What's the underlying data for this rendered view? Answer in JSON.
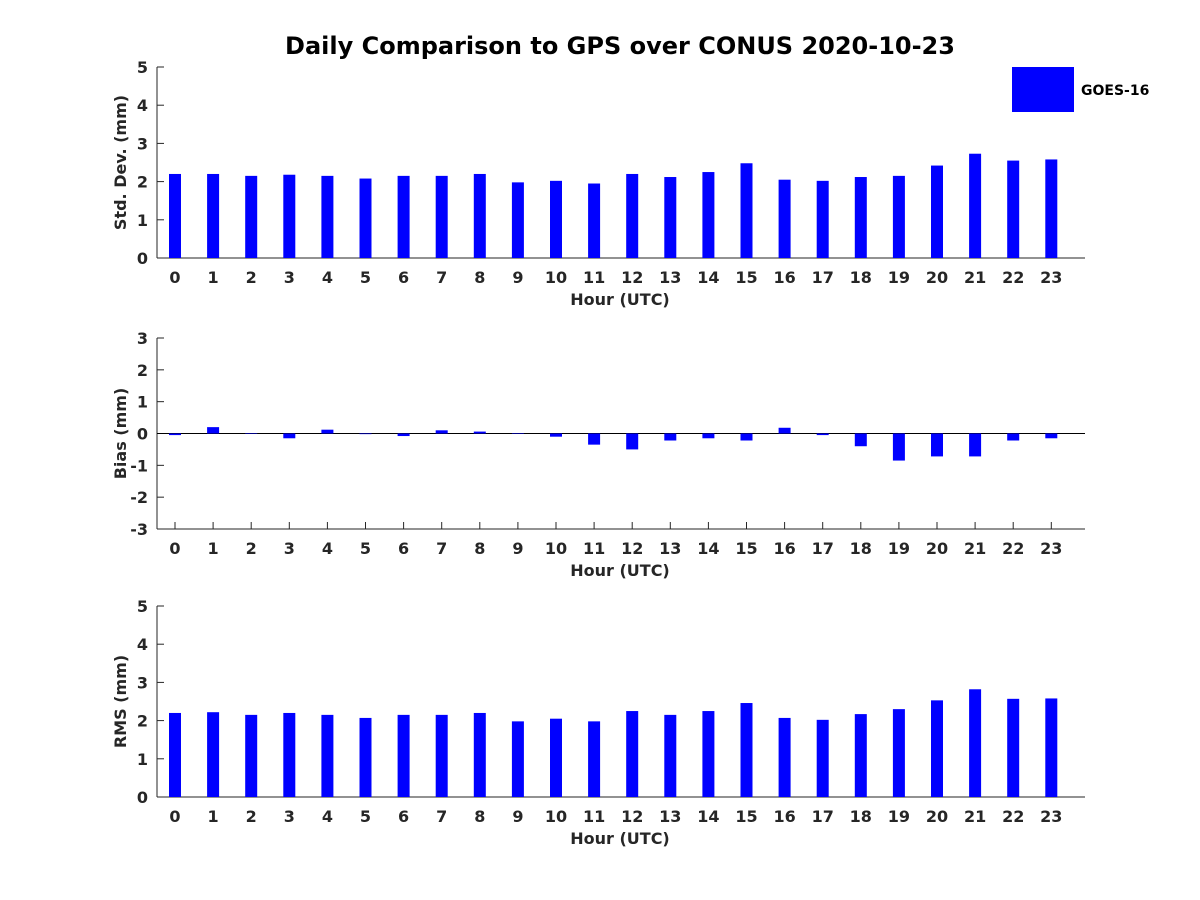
{
  "title": "Daily Comparison to GPS over CONUS 2020-10-23",
  "legend": {
    "label": "GOES-16",
    "color": "#0000ff"
  },
  "chart_data": [
    {
      "type": "bar",
      "name": "std-dev",
      "ylabel": "Std. Dev. (mm)",
      "xlabel": "Hour (UTC)",
      "ylim": [
        0,
        5
      ],
      "yticks": [
        0,
        1,
        2,
        3,
        4,
        5
      ],
      "categories": [
        0,
        1,
        2,
        3,
        4,
        5,
        6,
        7,
        8,
        9,
        10,
        11,
        12,
        13,
        14,
        15,
        16,
        17,
        18,
        19,
        20,
        21,
        22,
        23
      ],
      "series": [
        {
          "name": "GOES-16",
          "color": "#0000ff",
          "values": [
            2.2,
            2.2,
            2.15,
            2.18,
            2.15,
            2.08,
            2.15,
            2.15,
            2.2,
            1.98,
            2.02,
            1.95,
            2.2,
            2.12,
            2.25,
            2.48,
            2.05,
            2.02,
            2.12,
            2.15,
            2.42,
            2.73,
            2.55,
            2.58
          ]
        }
      ]
    },
    {
      "type": "bar",
      "name": "bias",
      "ylabel": "Bias (mm)",
      "xlabel": "Hour (UTC)",
      "ylim": [
        -3,
        3
      ],
      "yticks": [
        -3,
        -2,
        -1,
        0,
        1,
        2,
        3
      ],
      "categories": [
        0,
        1,
        2,
        3,
        4,
        5,
        6,
        7,
        8,
        9,
        10,
        11,
        12,
        13,
        14,
        15,
        16,
        17,
        18,
        19,
        20,
        21,
        22,
        23
      ],
      "series": [
        {
          "name": "GOES-16",
          "color": "#0000ff",
          "values": [
            -0.05,
            0.2,
            0.0,
            -0.15,
            0.12,
            -0.02,
            -0.08,
            0.1,
            0.06,
            -0.01,
            -0.1,
            -0.35,
            -0.5,
            -0.22,
            -0.15,
            -0.22,
            0.18,
            -0.05,
            -0.4,
            -0.85,
            -0.72,
            -0.72,
            -0.22,
            -0.15
          ]
        }
      ]
    },
    {
      "type": "bar",
      "name": "rms",
      "ylabel": "RMS (mm)",
      "xlabel": "Hour (UTC)",
      "ylim": [
        0,
        5
      ],
      "yticks": [
        0,
        1,
        2,
        3,
        4,
        5
      ],
      "categories": [
        0,
        1,
        2,
        3,
        4,
        5,
        6,
        7,
        8,
        9,
        10,
        11,
        12,
        13,
        14,
        15,
        16,
        17,
        18,
        19,
        20,
        21,
        22,
        23
      ],
      "series": [
        {
          "name": "GOES-16",
          "color": "#0000ff",
          "values": [
            2.2,
            2.22,
            2.15,
            2.2,
            2.15,
            2.07,
            2.15,
            2.15,
            2.2,
            1.98,
            2.05,
            1.98,
            2.25,
            2.15,
            2.25,
            2.46,
            2.07,
            2.02,
            2.17,
            2.3,
            2.53,
            2.82,
            2.57,
            2.58
          ]
        }
      ]
    }
  ]
}
